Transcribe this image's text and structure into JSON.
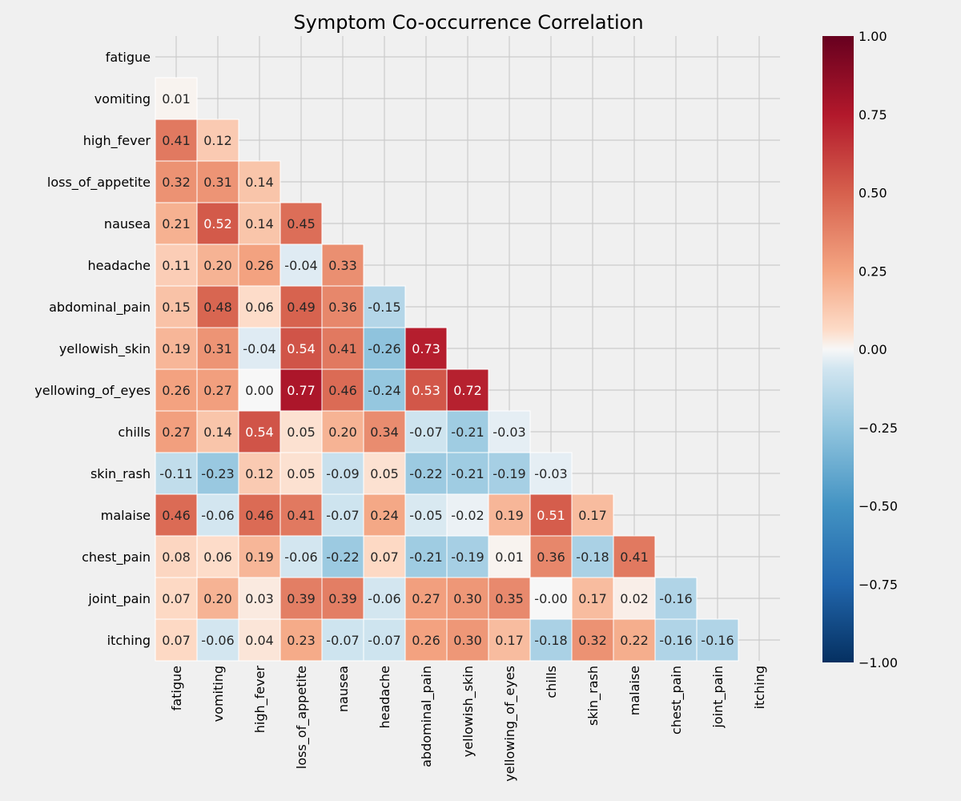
{
  "chart_data": {
    "type": "heatmap",
    "title": "Symptom Co-occurrence Correlation",
    "labels": [
      "fatigue",
      "vomiting",
      "high_fever",
      "loss_of_appetite",
      "nausea",
      "headache",
      "abdominal_pain",
      "yellowish_skin",
      "yellowing_of_eyes",
      "chills",
      "skin_rash",
      "malaise",
      "chest_pain",
      "joint_pain",
      "itching"
    ],
    "mask": "upper-triangle-and-diagonal",
    "lower_triangle_values": [
      [],
      [
        "0.01"
      ],
      [
        "0.41",
        "0.12"
      ],
      [
        "0.32",
        "0.31",
        "0.14"
      ],
      [
        "0.21",
        "0.52",
        "0.14",
        "0.45"
      ],
      [
        "0.11",
        "0.20",
        "0.26",
        "-0.04",
        "0.33"
      ],
      [
        "0.15",
        "0.48",
        "0.06",
        "0.49",
        "0.36",
        "-0.15"
      ],
      [
        "0.19",
        "0.31",
        "-0.04",
        "0.54",
        "0.41",
        "-0.26",
        "0.73"
      ],
      [
        "0.26",
        "0.27",
        "0.00",
        "0.77",
        "0.46",
        "-0.24",
        "0.53",
        "0.72"
      ],
      [
        "0.27",
        "0.14",
        "0.54",
        "0.05",
        "0.20",
        "0.34",
        "-0.07",
        "-0.21",
        "-0.03"
      ],
      [
        "-0.11",
        "-0.23",
        "0.12",
        "0.05",
        "-0.09",
        "0.05",
        "-0.22",
        "-0.21",
        "-0.19",
        "-0.03"
      ],
      [
        "0.46",
        "-0.06",
        "0.46",
        "0.41",
        "-0.07",
        "0.24",
        "-0.05",
        "-0.02",
        "0.19",
        "0.51",
        "0.17"
      ],
      [
        "0.08",
        "0.06",
        "0.19",
        "-0.06",
        "-0.22",
        "0.07",
        "-0.21",
        "-0.19",
        "0.01",
        "0.36",
        "-0.18",
        "0.41"
      ],
      [
        "0.07",
        "0.20",
        "0.03",
        "0.39",
        "0.39",
        "-0.06",
        "0.27",
        "0.30",
        "0.35",
        "-0.00",
        "0.17",
        "0.02",
        "-0.16"
      ],
      [
        "0.07",
        "-0.06",
        "0.04",
        "0.23",
        "-0.07",
        "-0.07",
        "0.26",
        "0.30",
        "0.17",
        "-0.18",
        "0.32",
        "0.22",
        "-0.16",
        "-0.16"
      ]
    ],
    "colorbar": {
      "range": [
        -1.0,
        1.0
      ],
      "ticks": [
        "1.00",
        "0.75",
        "0.50",
        "0.25",
        "0.00",
        "−0.25",
        "−0.50",
        "−0.75",
        "−1.00"
      ],
      "colormap": "RdBu_r"
    },
    "grid": true
  }
}
